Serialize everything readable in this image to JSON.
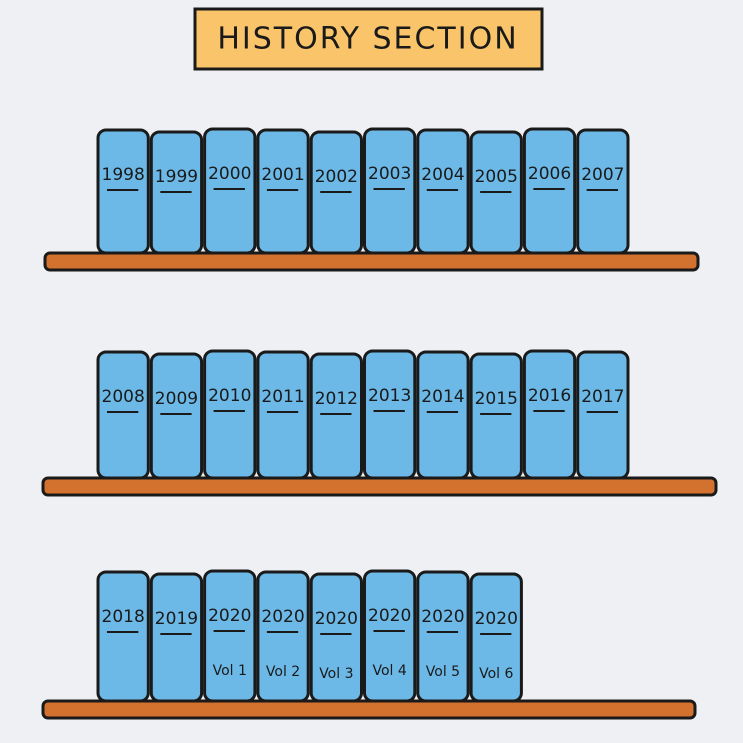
{
  "sign": "HISTORY SECTION",
  "shelves": [
    {
      "books": [
        {
          "label": "1998"
        },
        {
          "label": "1999"
        },
        {
          "label": "2000"
        },
        {
          "label": "2001"
        },
        {
          "label": "2002"
        },
        {
          "label": "2003"
        },
        {
          "label": "2004"
        },
        {
          "label": "2005"
        },
        {
          "label": "2006"
        },
        {
          "label": "2007"
        }
      ]
    },
    {
      "books": [
        {
          "label": "2008"
        },
        {
          "label": "2009"
        },
        {
          "label": "2010"
        },
        {
          "label": "2011"
        },
        {
          "label": "2012"
        },
        {
          "label": "2013"
        },
        {
          "label": "2014"
        },
        {
          "label": "2015"
        },
        {
          "label": "2016"
        },
        {
          "label": "2017"
        }
      ]
    },
    {
      "books": [
        {
          "label": "2018"
        },
        {
          "label": "2019"
        },
        {
          "label": "2020",
          "volume": "Vol 1"
        },
        {
          "label": "2020",
          "volume": "Vol 2"
        },
        {
          "label": "2020",
          "volume": "Vol 3"
        },
        {
          "label": "2020",
          "volume": "Vol 4"
        },
        {
          "label": "2020",
          "volume": "Vol 5"
        },
        {
          "label": "2020",
          "volume": "Vol 6"
        }
      ]
    }
  ]
}
